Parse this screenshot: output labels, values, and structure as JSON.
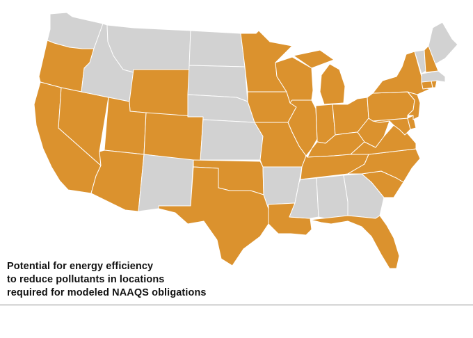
{
  "caption": {
    "line1": "Potential for energy efficiency",
    "line2": "to reduce pollutants in locations",
    "line3": "required for modeled NAAQS obligations"
  },
  "legend_colors": {
    "required": "#DB922E",
    "not_required": "#D2D2D2"
  },
  "states": [
    {
      "id": "WA",
      "status": "not_required"
    },
    {
      "id": "OR",
      "status": "required"
    },
    {
      "id": "CA",
      "status": "required"
    },
    {
      "id": "NV",
      "status": "required"
    },
    {
      "id": "ID",
      "status": "not_required"
    },
    {
      "id": "MT",
      "status": "not_required"
    },
    {
      "id": "WY",
      "status": "required"
    },
    {
      "id": "UT",
      "status": "required"
    },
    {
      "id": "AZ",
      "status": "required"
    },
    {
      "id": "CO",
      "status": "required"
    },
    {
      "id": "NM",
      "status": "not_required"
    },
    {
      "id": "ND",
      "status": "not_required"
    },
    {
      "id": "SD",
      "status": "not_required"
    },
    {
      "id": "NE",
      "status": "not_required"
    },
    {
      "id": "KS",
      "status": "not_required"
    },
    {
      "id": "OK",
      "status": "required"
    },
    {
      "id": "TX",
      "status": "required"
    },
    {
      "id": "MN",
      "status": "required"
    },
    {
      "id": "IA",
      "status": "required"
    },
    {
      "id": "MO",
      "status": "required"
    },
    {
      "id": "AR",
      "status": "not_required"
    },
    {
      "id": "LA",
      "status": "required"
    },
    {
      "id": "WI",
      "status": "required"
    },
    {
      "id": "IL",
      "status": "required"
    },
    {
      "id": "MI",
      "status": "required"
    },
    {
      "id": "IN",
      "status": "required"
    },
    {
      "id": "OH",
      "status": "required"
    },
    {
      "id": "KY",
      "status": "required"
    },
    {
      "id": "TN",
      "status": "required"
    },
    {
      "id": "MS",
      "status": "not_required"
    },
    {
      "id": "AL",
      "status": "not_required"
    },
    {
      "id": "GA",
      "status": "not_required"
    },
    {
      "id": "FL",
      "status": "required"
    },
    {
      "id": "SC",
      "status": "required"
    },
    {
      "id": "NC",
      "status": "required"
    },
    {
      "id": "VA",
      "status": "required"
    },
    {
      "id": "WV",
      "status": "required"
    },
    {
      "id": "MD",
      "status": "required"
    },
    {
      "id": "DE",
      "status": "required"
    },
    {
      "id": "PA",
      "status": "required"
    },
    {
      "id": "NJ",
      "status": "required"
    },
    {
      "id": "NY",
      "status": "required"
    },
    {
      "id": "CT",
      "status": "required"
    },
    {
      "id": "RI",
      "status": "required"
    },
    {
      "id": "MA",
      "status": "not_required"
    },
    {
      "id": "VT",
      "status": "not_required"
    },
    {
      "id": "NH",
      "status": "required"
    },
    {
      "id": "ME",
      "status": "not_required"
    }
  ]
}
